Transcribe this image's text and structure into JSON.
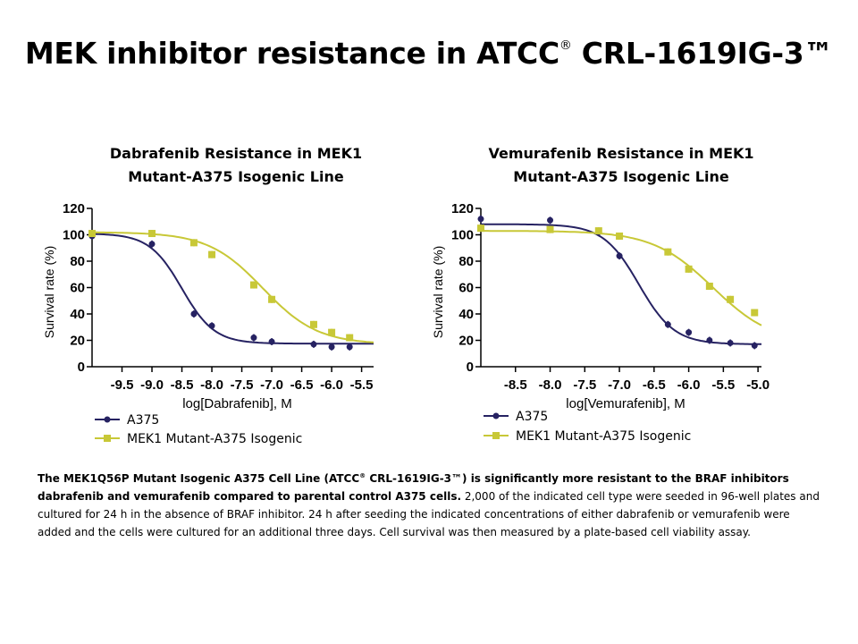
{
  "title": {
    "main": "MEK inhibitor resistance in ATCC",
    "reg": "®",
    "tail": " CRL-1619IG-3™"
  },
  "colors": {
    "a375": "#262262",
    "mek1": "#c8c837"
  },
  "chart_data": [
    {
      "type": "line",
      "title_lines": [
        "Dabrafenib Resistance in MEK1",
        "Mutant-A375 Isogenic Line"
      ],
      "xlabel": "log[Dabrafenib], M",
      "ylabel": "Survival rate (%)",
      "xlim": [
        -10.0,
        -5.3
      ],
      "ylim": [
        0,
        120
      ],
      "x_ticks": [
        -9.5,
        -9.0,
        -8.5,
        -8.0,
        -7.5,
        -7.0,
        -6.5,
        -6.0,
        -5.5
      ],
      "x_tick_labels": [
        "-9.5",
        "-9.0",
        "-8.5",
        "-8.0",
        "-7.5",
        "-7.0",
        "-6.5",
        "-6.0",
        "-5.5"
      ],
      "y_ticks": [
        0,
        20,
        40,
        60,
        80,
        100,
        120
      ],
      "y_tick_labels": [
        "0",
        "20",
        "40",
        "60",
        "80",
        "100",
        "120"
      ],
      "series": [
        {
          "name": "A375",
          "marker": "circle",
          "color": "#262262",
          "x": [
            -10.0,
            -9.0,
            -8.3,
            -8.0,
            -7.3,
            -7.0,
            -6.3,
            -6.0,
            -5.7
          ],
          "y": [
            99,
            93,
            40,
            31,
            22,
            19,
            17,
            15,
            15
          ],
          "fit": {
            "top": 101,
            "bottom": 17.5,
            "logec50": -8.5,
            "hill": 1.6
          }
        },
        {
          "name": "MEK1 Mutant-A375 Isogenic",
          "marker": "square",
          "color": "#c8c837",
          "x": [
            -10.0,
            -9.0,
            -8.3,
            -8.0,
            -7.3,
            -7.0,
            -6.3,
            -6.0,
            -5.7
          ],
          "y": [
            101,
            101,
            94,
            85,
            62,
            51,
            32,
            26,
            22
          ],
          "fit": {
            "top": 102,
            "bottom": 17,
            "logec50": -7.15,
            "hill": 0.95
          }
        }
      ],
      "legend": [
        "A375",
        "MEK1 Mutant-A375 Isogenic"
      ]
    },
    {
      "type": "line",
      "title_lines": [
        "Vemurafenib Resistance in MEK1",
        "Mutant-A375 Isogenic Line"
      ],
      "xlabel": "log[Vemurafenib], M",
      "ylabel": "Survival rate (%)",
      "xlim": [
        -9.0,
        -4.95
      ],
      "ylim": [
        0,
        120
      ],
      "x_ticks": [
        -8.5,
        -8.0,
        -7.5,
        -7.0,
        -6.5,
        -6.0,
        -5.5,
        -5.0
      ],
      "x_tick_labels": [
        "-8.5",
        "-8.0",
        "-7.5",
        "-7.0",
        "-6.5",
        "-6.0",
        "-5.5",
        "-5.0"
      ],
      "y_ticks": [
        0,
        20,
        40,
        60,
        80,
        100,
        120
      ],
      "y_tick_labels": [
        "0",
        "20",
        "40",
        "60",
        "80",
        "100",
        "120"
      ],
      "series": [
        {
          "name": "A375",
          "marker": "circle",
          "color": "#262262",
          "x": [
            -9.0,
            -8.0,
            -7.3,
            -7.0,
            -6.3,
            -6.0,
            -5.7,
            -5.4,
            -5.05
          ],
          "y": [
            112,
            111,
            102,
            84,
            32,
            26,
            20,
            18,
            16
          ],
          "fit": {
            "top": 108,
            "bottom": 17,
            "logec50": -6.72,
            "hill": 1.7
          }
        },
        {
          "name": "MEK1 Mutant-A375 Isogenic",
          "marker": "square",
          "color": "#c8c837",
          "x": [
            -9.0,
            -8.0,
            -7.3,
            -7.0,
            -6.3,
            -6.0,
            -5.7,
            -5.4,
            -5.05
          ],
          "y": [
            105,
            104,
            103,
            99,
            87,
            74,
            61,
            51,
            41
          ],
          "fit": {
            "top": 103,
            "bottom": 17,
            "logec50": -5.65,
            "hill": 1.0
          }
        }
      ],
      "legend": [
        "A375",
        "MEK1 Mutant-A375 Isogenic"
      ]
    }
  ],
  "caption": {
    "bold_1": "The MEK1Q56P Mutant Isogenic A375 Cell Line (ATCC",
    "sup_1": "®",
    "bold_2": " CRL-1619IG-3™)  is significantly more resistant to the BRAF inhibitors dabrafenib and vemurafenib compared to parental control A375 cells.",
    "normal": " 2,000 of the indicated cell type were seeded in 96-well plates and cultured for 24 h in the absence of BRAF inhibitor. 24 h after seeding the indicated concentrations of either dabrafenib or vemurafenib were added and the cells were cultured for an additional three days. Cell survival was then measured by a plate-based cell viability assay."
  }
}
